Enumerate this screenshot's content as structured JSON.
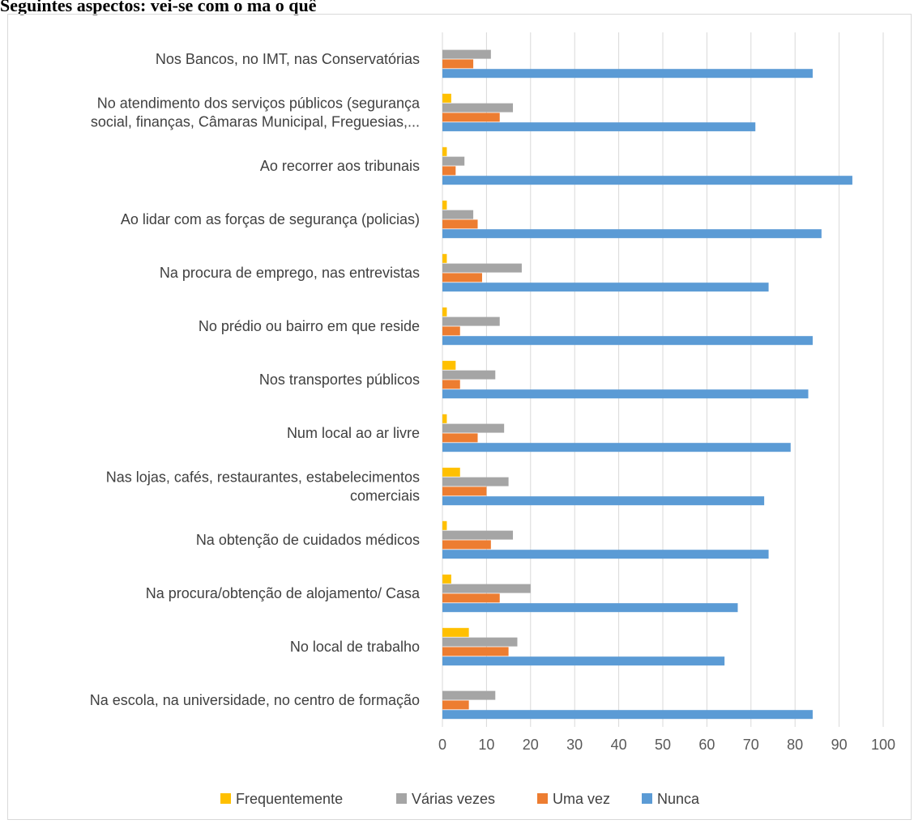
{
  "page": {
    "title": "Seguintes aspectos: vei-se com o ma o quê"
  },
  "chart_data": {
    "type": "bar",
    "orientation": "horizontal",
    "title": "",
    "xlabel": "",
    "ylabel": "",
    "xlim": [
      0,
      100
    ],
    "x_ticks": [
      0,
      10,
      20,
      30,
      40,
      50,
      60,
      70,
      80,
      90,
      100
    ],
    "grid": true,
    "legend_position": "bottom",
    "categories": [
      [
        "Nos Bancos, no IMT, nas Conservatórias"
      ],
      [
        "No atendimento dos serviços públicos (segurança",
        "social, finanças, Câmaras Municipal, Freguesias,..."
      ],
      [
        "Ao recorrer aos tribunais"
      ],
      [
        "Ao lidar com as forças de segurança (policias)"
      ],
      [
        "Na procura de emprego, nas entrevistas"
      ],
      [
        "No prédio ou bairro em que reside"
      ],
      [
        "Nos transportes públicos"
      ],
      [
        "Num local ao ar livre"
      ],
      [
        "Nas lojas, cafés, restaurantes, estabelecimentos",
        "comerciais"
      ],
      [
        "Na obtenção de cuidados médicos"
      ],
      [
        "Na procura/obtenção de alojamento/ Casa"
      ],
      [
        "No local de trabalho"
      ],
      [
        "Na escola, na universidade, no centro de formação"
      ]
    ],
    "series": [
      {
        "name": "Frequentemente",
        "color": "#ffc000",
        "values": [
          0,
          2,
          1,
          1,
          1,
          1,
          3,
          1,
          4,
          1,
          2,
          6,
          0
        ]
      },
      {
        "name": "Várias vezes",
        "color": "#a5a5a5",
        "values": [
          11,
          16,
          5,
          7,
          18,
          13,
          12,
          14,
          15,
          16,
          20,
          17,
          12
        ]
      },
      {
        "name": "Uma vez",
        "color": "#ed7d31",
        "values": [
          7,
          13,
          3,
          8,
          9,
          4,
          4,
          8,
          10,
          11,
          13,
          15,
          6
        ]
      },
      {
        "name": "Nunca",
        "color": "#5b9bd5",
        "values": [
          84,
          71,
          93,
          86,
          74,
          84,
          83,
          79,
          73,
          74,
          67,
          64,
          84
        ]
      }
    ]
  }
}
